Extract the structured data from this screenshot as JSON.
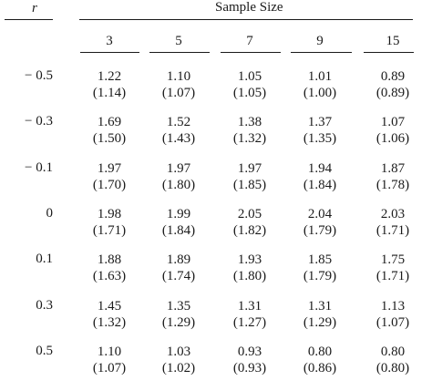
{
  "table": {
    "row_header": "r",
    "group_header": "Sample Size",
    "columns": [
      "3",
      "5",
      "7",
      "9",
      "15"
    ],
    "rows": [
      {
        "r": "− 0.5",
        "values": [
          "1.22",
          "1.10",
          "1.05",
          "1.01",
          "0.89"
        ],
        "paren": [
          "(1.14)",
          "(1.07)",
          "(1.05)",
          "(1.00)",
          "(0.89)"
        ]
      },
      {
        "r": "− 0.3",
        "values": [
          "1.69",
          "1.52",
          "1.38",
          "1.37",
          "1.07"
        ],
        "paren": [
          "(1.50)",
          "(1.43)",
          "(1.32)",
          "(1.35)",
          "(1.06)"
        ]
      },
      {
        "r": "− 0.1",
        "values": [
          "1.97",
          "1.97",
          "1.97",
          "1.94",
          "1.87"
        ],
        "paren": [
          "(1.70)",
          "(1.80)",
          "(1.85)",
          "(1.84)",
          "(1.78)"
        ]
      },
      {
        "r": "0",
        "values": [
          "1.98",
          "1.99",
          "2.05",
          "2.04",
          "2.03"
        ],
        "paren": [
          "(1.71)",
          "(1.84)",
          "(1.82)",
          "(1.79)",
          "(1.71)"
        ]
      },
      {
        "r": "0.1",
        "values": [
          "1.88",
          "1.89",
          "1.93",
          "1.85",
          "1.75"
        ],
        "paren": [
          "(1.63)",
          "(1.74)",
          "(1.80)",
          "(1.79)",
          "(1.71)"
        ]
      },
      {
        "r": "0.3",
        "values": [
          "1.45",
          "1.35",
          "1.31",
          "1.31",
          "1.13"
        ],
        "paren": [
          "(1.32)",
          "(1.29)",
          "(1.27)",
          "(1.29)",
          "(1.07)"
        ]
      },
      {
        "r": "0.5",
        "values": [
          "1.10",
          "1.03",
          "0.93",
          "0.80",
          "0.80"
        ],
        "paren": [
          "(1.07)",
          "(1.02)",
          "(0.93)",
          "(0.86)",
          "(0.80)"
        ]
      }
    ]
  }
}
